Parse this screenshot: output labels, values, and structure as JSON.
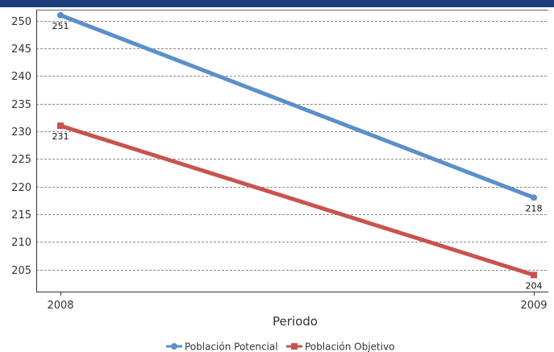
{
  "chart_data": {
    "type": "line",
    "title": "",
    "xlabel": "Periodo",
    "ylabel": "",
    "categories": [
      "2008",
      "2009"
    ],
    "ylim": [
      201,
      252
    ],
    "yticks": [
      205,
      210,
      215,
      220,
      225,
      230,
      235,
      240,
      245,
      250
    ],
    "grid": true,
    "legend_position": "bottom",
    "series": [
      {
        "name": "Población Potencial",
        "values": [
          251,
          218
        ],
        "labels": [
          "251",
          "218"
        ],
        "color": "#5b8fc9",
        "marker": "circle"
      },
      {
        "name": "Población Objetivo",
        "values": [
          231,
          204
        ],
        "labels": [
          "231",
          "204"
        ],
        "color": "#c9534f",
        "marker": "square"
      }
    ]
  }
}
